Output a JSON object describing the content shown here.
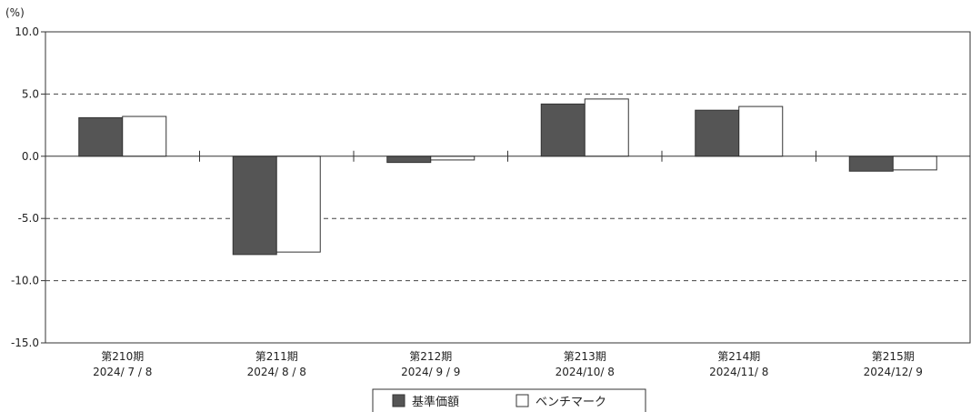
{
  "chart_data": {
    "type": "bar",
    "unit_label": "(%)",
    "categories": [
      {
        "period": "第210期",
        "date": "2024/ 7 / 8"
      },
      {
        "period": "第211期",
        "date": "2024/ 8 / 8"
      },
      {
        "period": "第212期",
        "date": "2024/ 9 / 9"
      },
      {
        "period": "第213期",
        "date": "2024/10/ 8"
      },
      {
        "period": "第214期",
        "date": "2024/11/ 8"
      },
      {
        "period": "第215期",
        "date": "2024/12/ 9"
      }
    ],
    "series": [
      {
        "name": "基準価額",
        "color": "#555555",
        "values": [
          3.1,
          -7.9,
          -0.5,
          4.2,
          3.7,
          -1.2
        ]
      },
      {
        "name": "ベンチマーク",
        "color": "#ffffff",
        "values": [
          3.2,
          -7.7,
          -0.3,
          4.6,
          4.0,
          -1.1
        ]
      }
    ],
    "ylim": [
      -15,
      10
    ],
    "yticks": [
      10,
      5,
      0,
      -5,
      -10,
      -15
    ],
    "ytick_labels": [
      "10.0",
      "5.0",
      "0.0",
      "-5.0",
      "-10.0",
      "-15.0"
    ],
    "gridlines_dashed": [
      5,
      -5,
      -10
    ],
    "legend_placement": "bottom-center"
  }
}
